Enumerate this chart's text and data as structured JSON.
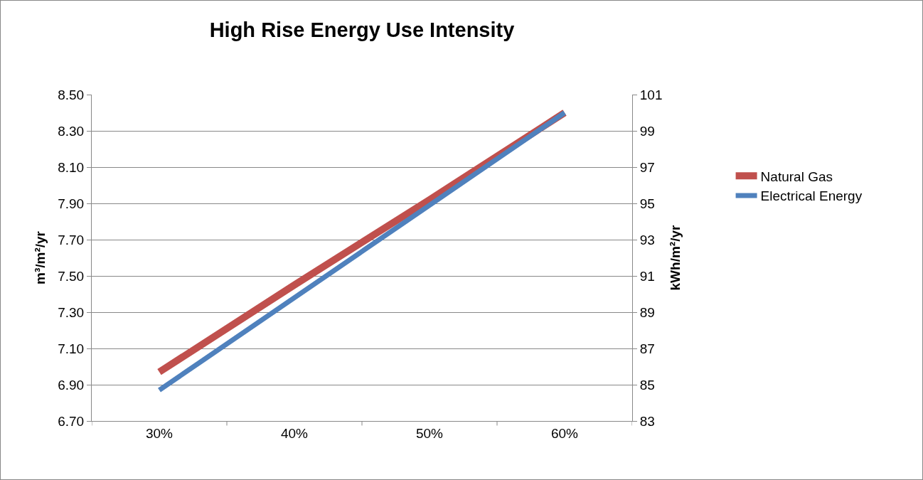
{
  "chart_data": {
    "type": "line",
    "title": "High Rise Energy Use Intensity",
    "ylabel": "m³/m²/yr",
    "y2label": "kWh/m²/yr",
    "categories": [
      "30%",
      "40%",
      "50%",
      "60%"
    ],
    "series": [
      {
        "name": "Natural Gas",
        "color": "#c0504d",
        "values": [
          6.97,
          7.45,
          7.92,
          8.4
        ]
      },
      {
        "name": "Electrical Energy",
        "color": "#4f81bd",
        "axis": "y2",
        "values": [
          84.7,
          89.8,
          94.9,
          100.0
        ]
      }
    ],
    "ylim": [
      6.7,
      8.5
    ],
    "yticks": [
      {
        "value": 6.7,
        "label": "6.70"
      },
      {
        "value": 6.9,
        "label": "6.90"
      },
      {
        "value": 7.1,
        "label": "7.10"
      },
      {
        "value": 7.3,
        "label": "7.30"
      },
      {
        "value": 7.5,
        "label": "7.50"
      },
      {
        "value": 7.7,
        "label": "7.70"
      },
      {
        "value": 7.9,
        "label": "7.90"
      },
      {
        "value": 8.1,
        "label": "8.10"
      },
      {
        "value": 8.3,
        "label": "8.30"
      },
      {
        "value": 8.5,
        "label": "8.50"
      }
    ],
    "y2lim": [
      83,
      101
    ],
    "y2ticks": [
      83,
      85,
      87,
      89,
      91,
      93,
      95,
      97,
      99,
      101
    ],
    "grid": "y",
    "legend": "right",
    "marker": "none",
    "line_style": "solid"
  }
}
